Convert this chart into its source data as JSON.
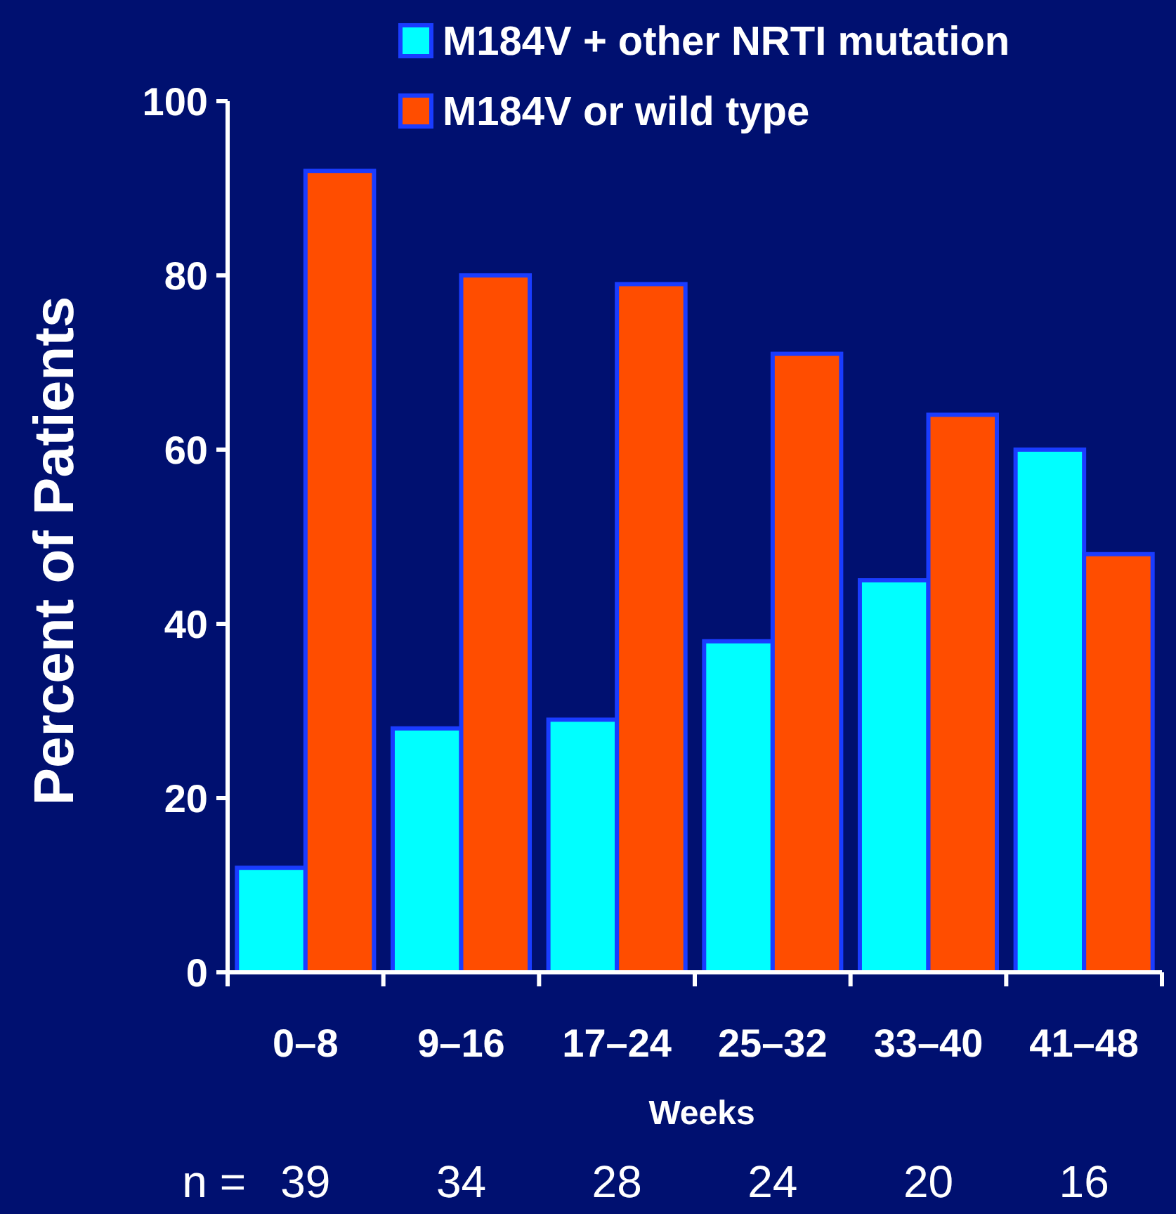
{
  "chart_data": {
    "type": "bar",
    "xlabel": "Weeks",
    "ylabel": "Percent of Patients",
    "categories": [
      "0–8",
      "9–16",
      "17–24",
      "25–32",
      "33–40",
      "41–48"
    ],
    "series": [
      {
        "name": "M184V + other NRTI mutation",
        "color": "#00ffff",
        "values": [
          12,
          28,
          29,
          38,
          45,
          60
        ]
      },
      {
        "name": "M184V or wild type",
        "color": "#ff4d00",
        "values": [
          92,
          80,
          79,
          71,
          64,
          48
        ]
      }
    ],
    "ylim": [
      0,
      100
    ],
    "yticks": [
      0,
      20,
      40,
      60,
      80,
      100
    ],
    "grid": false,
    "legend": "top right",
    "annotations": [
      "n =",
      "39",
      "34",
      "28",
      "24",
      "20",
      "16"
    ]
  }
}
